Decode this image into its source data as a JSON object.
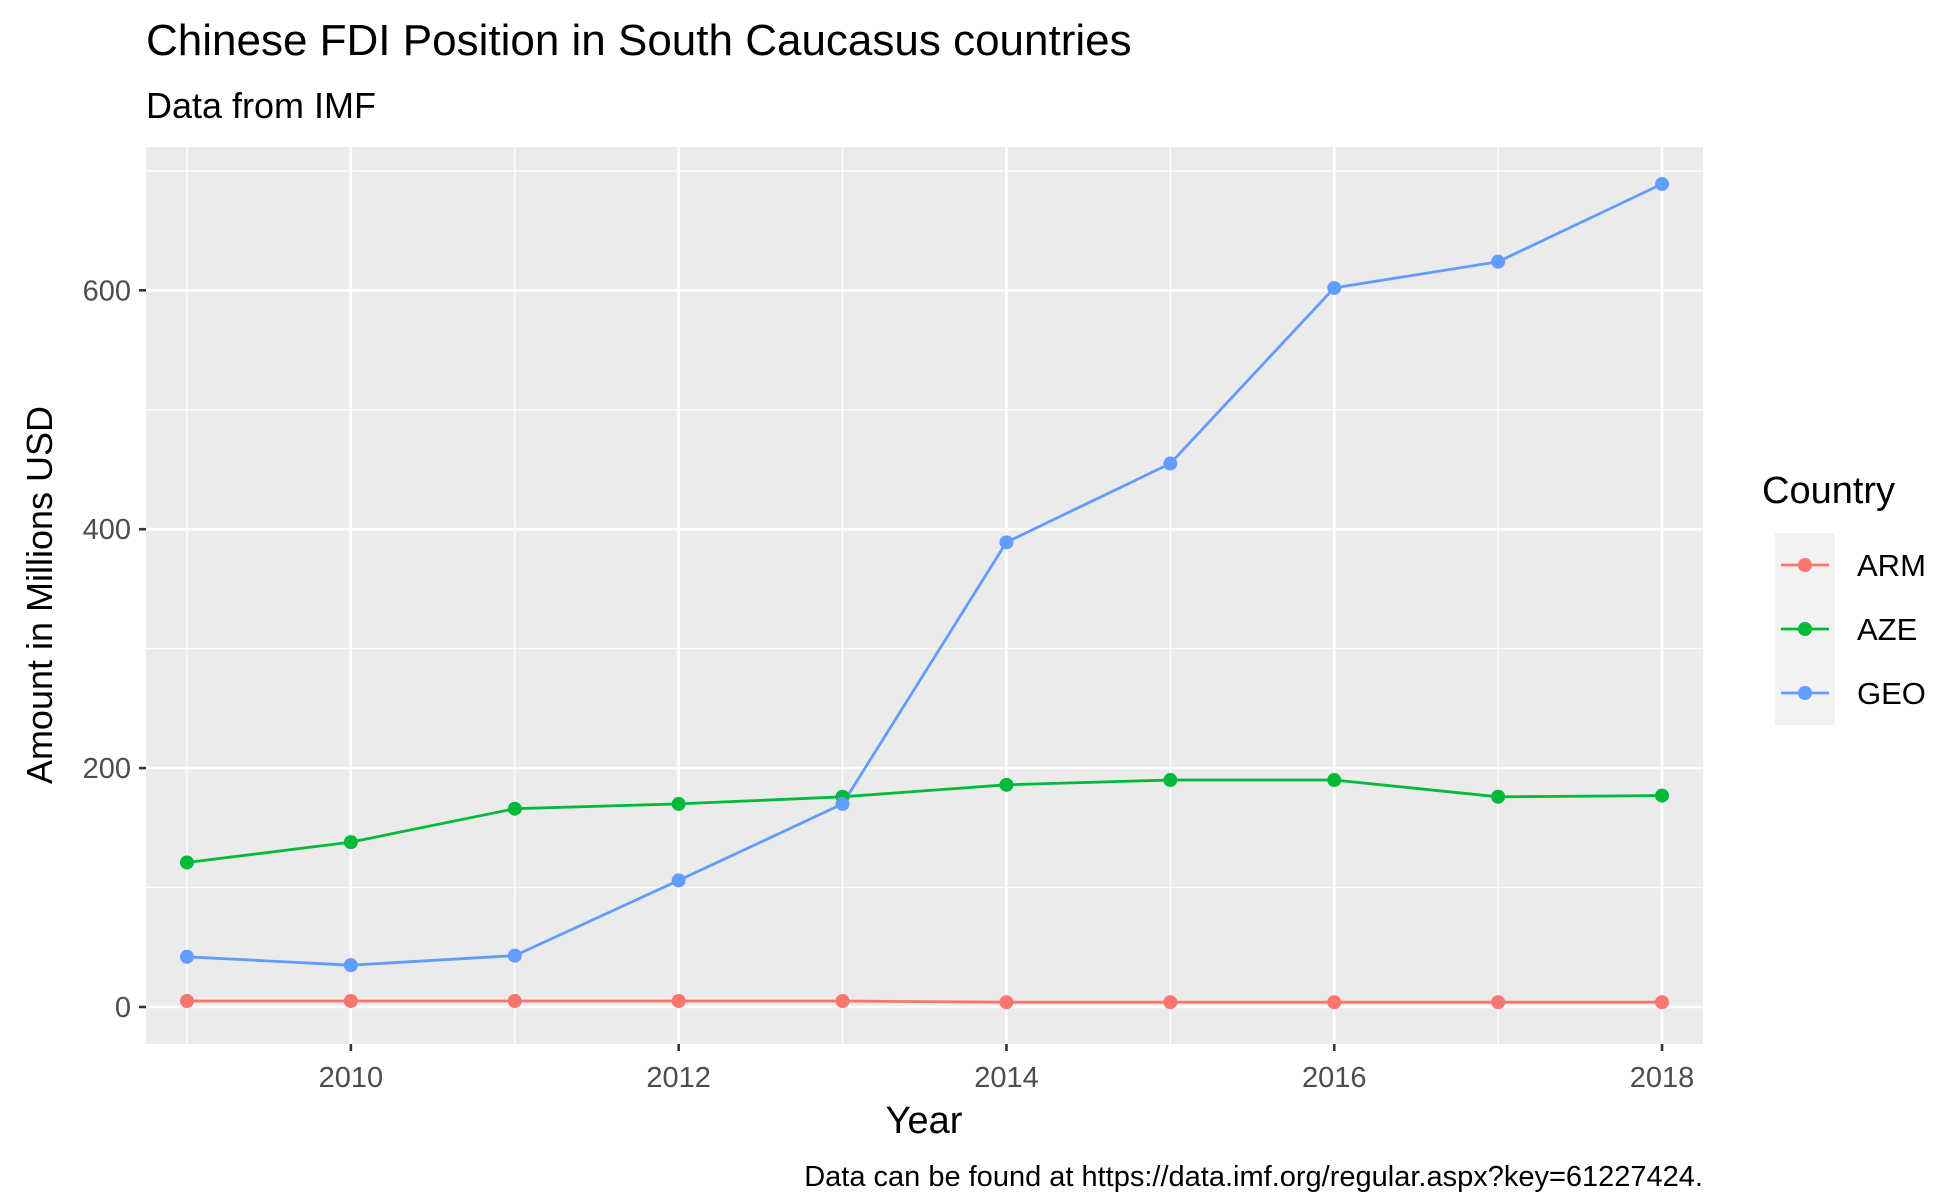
{
  "chart_data": {
    "type": "line",
    "title": "Chinese FDI Position in South Caucasus countries",
    "subtitle": "Data from IMF",
    "xlabel": "Year",
    "ylabel": "Amount in Millions USD",
    "caption": "Data can be found at https://data.imf.org/regular.aspx?key=61227424.",
    "x": [
      2009,
      2010,
      2011,
      2012,
      2013,
      2014,
      2015,
      2016,
      2017,
      2018
    ],
    "xlim": [
      2008.75,
      2018.25
    ],
    "ylim": [
      -31,
      720
    ],
    "x_ticks": [
      2010,
      2012,
      2014,
      2016,
      2018
    ],
    "y_ticks": [
      0,
      200,
      400,
      600
    ],
    "grid": true,
    "legend": {
      "title": "Country",
      "position": "right"
    },
    "series": [
      {
        "name": "ARM",
        "color": "#F8766D",
        "values": [
          5,
          5,
          5,
          5,
          5,
          4,
          4,
          4,
          4,
          4
        ]
      },
      {
        "name": "AZE",
        "color": "#00BA38",
        "values": [
          121,
          138,
          166,
          170,
          176,
          186,
          190,
          190,
          176,
          177
        ]
      },
      {
        "name": "GEO",
        "color": "#619CFF",
        "values": [
          42,
          35,
          43,
          106,
          170,
          389,
          455,
          602,
          624,
          689
        ]
      }
    ]
  }
}
